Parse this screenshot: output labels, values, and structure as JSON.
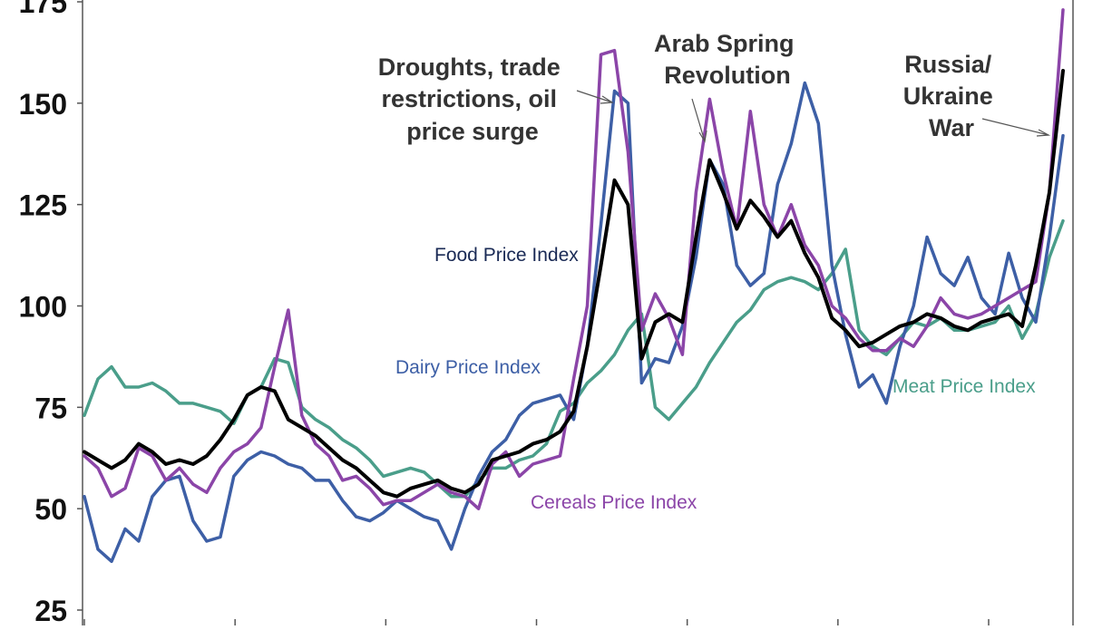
{
  "chart_data": {
    "type": "line",
    "ylim": [
      25,
      175
    ],
    "y_ticks": [
      "175",
      "150",
      "125",
      "100",
      "75",
      "50",
      "25"
    ],
    "x_tick_count": 7,
    "grid": false,
    "series": [
      {
        "name": "Meat Price Index",
        "color": "#4a9e8a",
        "label_key": "meat",
        "values": [
          73,
          82,
          85,
          80,
          80,
          81,
          79,
          76,
          76,
          75,
          74,
          71,
          78,
          80,
          87,
          86,
          75,
          72,
          70,
          67,
          65,
          62,
          58,
          59,
          60,
          59,
          56,
          53,
          53,
          57,
          60,
          60,
          62,
          63,
          66,
          74,
          76,
          81,
          84,
          88,
          94,
          98,
          75,
          72,
          76,
          80,
          86,
          91,
          96,
          99,
          104,
          106,
          107,
          106,
          104,
          108,
          114,
          94,
          90,
          88,
          92,
          96,
          95,
          97,
          94,
          94,
          95,
          96,
          100,
          92,
          98,
          112,
          121
        ]
      },
      {
        "name": "Dairy Price Index",
        "color": "#3d5fa6",
        "label_key": "dairy",
        "values": [
          53,
          40,
          37,
          45,
          42,
          53,
          57,
          58,
          47,
          42,
          43,
          58,
          62,
          64,
          63,
          61,
          60,
          57,
          57,
          52,
          48,
          47,
          49,
          52,
          50,
          48,
          47,
          40,
          50,
          58,
          64,
          67,
          73,
          76,
          77,
          78,
          72,
          90,
          120,
          153,
          150,
          81,
          87,
          86,
          95,
          112,
          136,
          130,
          110,
          105,
          108,
          130,
          140,
          155,
          145,
          110,
          93,
          80,
          83,
          76,
          90,
          100,
          117,
          108,
          105,
          112,
          102,
          98,
          113,
          102,
          96,
          117,
          142
        ]
      },
      {
        "name": "Cereals Price Index",
        "color": "#8b45a8",
        "label_key": "cereals",
        "values": [
          63,
          60,
          53,
          55,
          65,
          63,
          57,
          60,
          56,
          54,
          60,
          64,
          66,
          70,
          85,
          99,
          73,
          66,
          63,
          57,
          58,
          55,
          51,
          52,
          52,
          54,
          56,
          54,
          53,
          50,
          61,
          64,
          58,
          61,
          62,
          63,
          82,
          100,
          162,
          163,
          138,
          94,
          103,
          97,
          88,
          128,
          151,
          133,
          119,
          148,
          125,
          117,
          125,
          115,
          110,
          100,
          97,
          92,
          89,
          89,
          92,
          90,
          95,
          102,
          98,
          97,
          98,
          100,
          102,
          104,
          106,
          128,
          173
        ]
      },
      {
        "name": "Food Price Index",
        "color": "#000000",
        "label_key": "food",
        "values": [
          64,
          62,
          60,
          62,
          66,
          64,
          61,
          62,
          61,
          63,
          67,
          72,
          78,
          80,
          79,
          72,
          70,
          68,
          65,
          62,
          60,
          57,
          54,
          53,
          55,
          56,
          57,
          55,
          54,
          56,
          62,
          63,
          64,
          66,
          67,
          69,
          74,
          90,
          110,
          131,
          125,
          87,
          96,
          98,
          96,
          117,
          136,
          128,
          119,
          126,
          122,
          117,
          121,
          113,
          107,
          97,
          94,
          90,
          91,
          93,
          95,
          96,
          98,
          97,
          95,
          94,
          96,
          97,
          98,
          95,
          110,
          128,
          158
        ]
      }
    ],
    "series_labels": {
      "food": "Food Price Index",
      "dairy": "Dairy Price Index",
      "cereals": "Cereals Price Index",
      "meat": "Meat Price Index"
    },
    "annotations": {
      "droughts": [
        "Droughts, trade",
        "restrictions, oil",
        "price surge"
      ],
      "arab": [
        "Arab Spring",
        "Revolution"
      ],
      "russia": [
        "Russia/",
        "Ukraine",
        "War"
      ]
    }
  }
}
